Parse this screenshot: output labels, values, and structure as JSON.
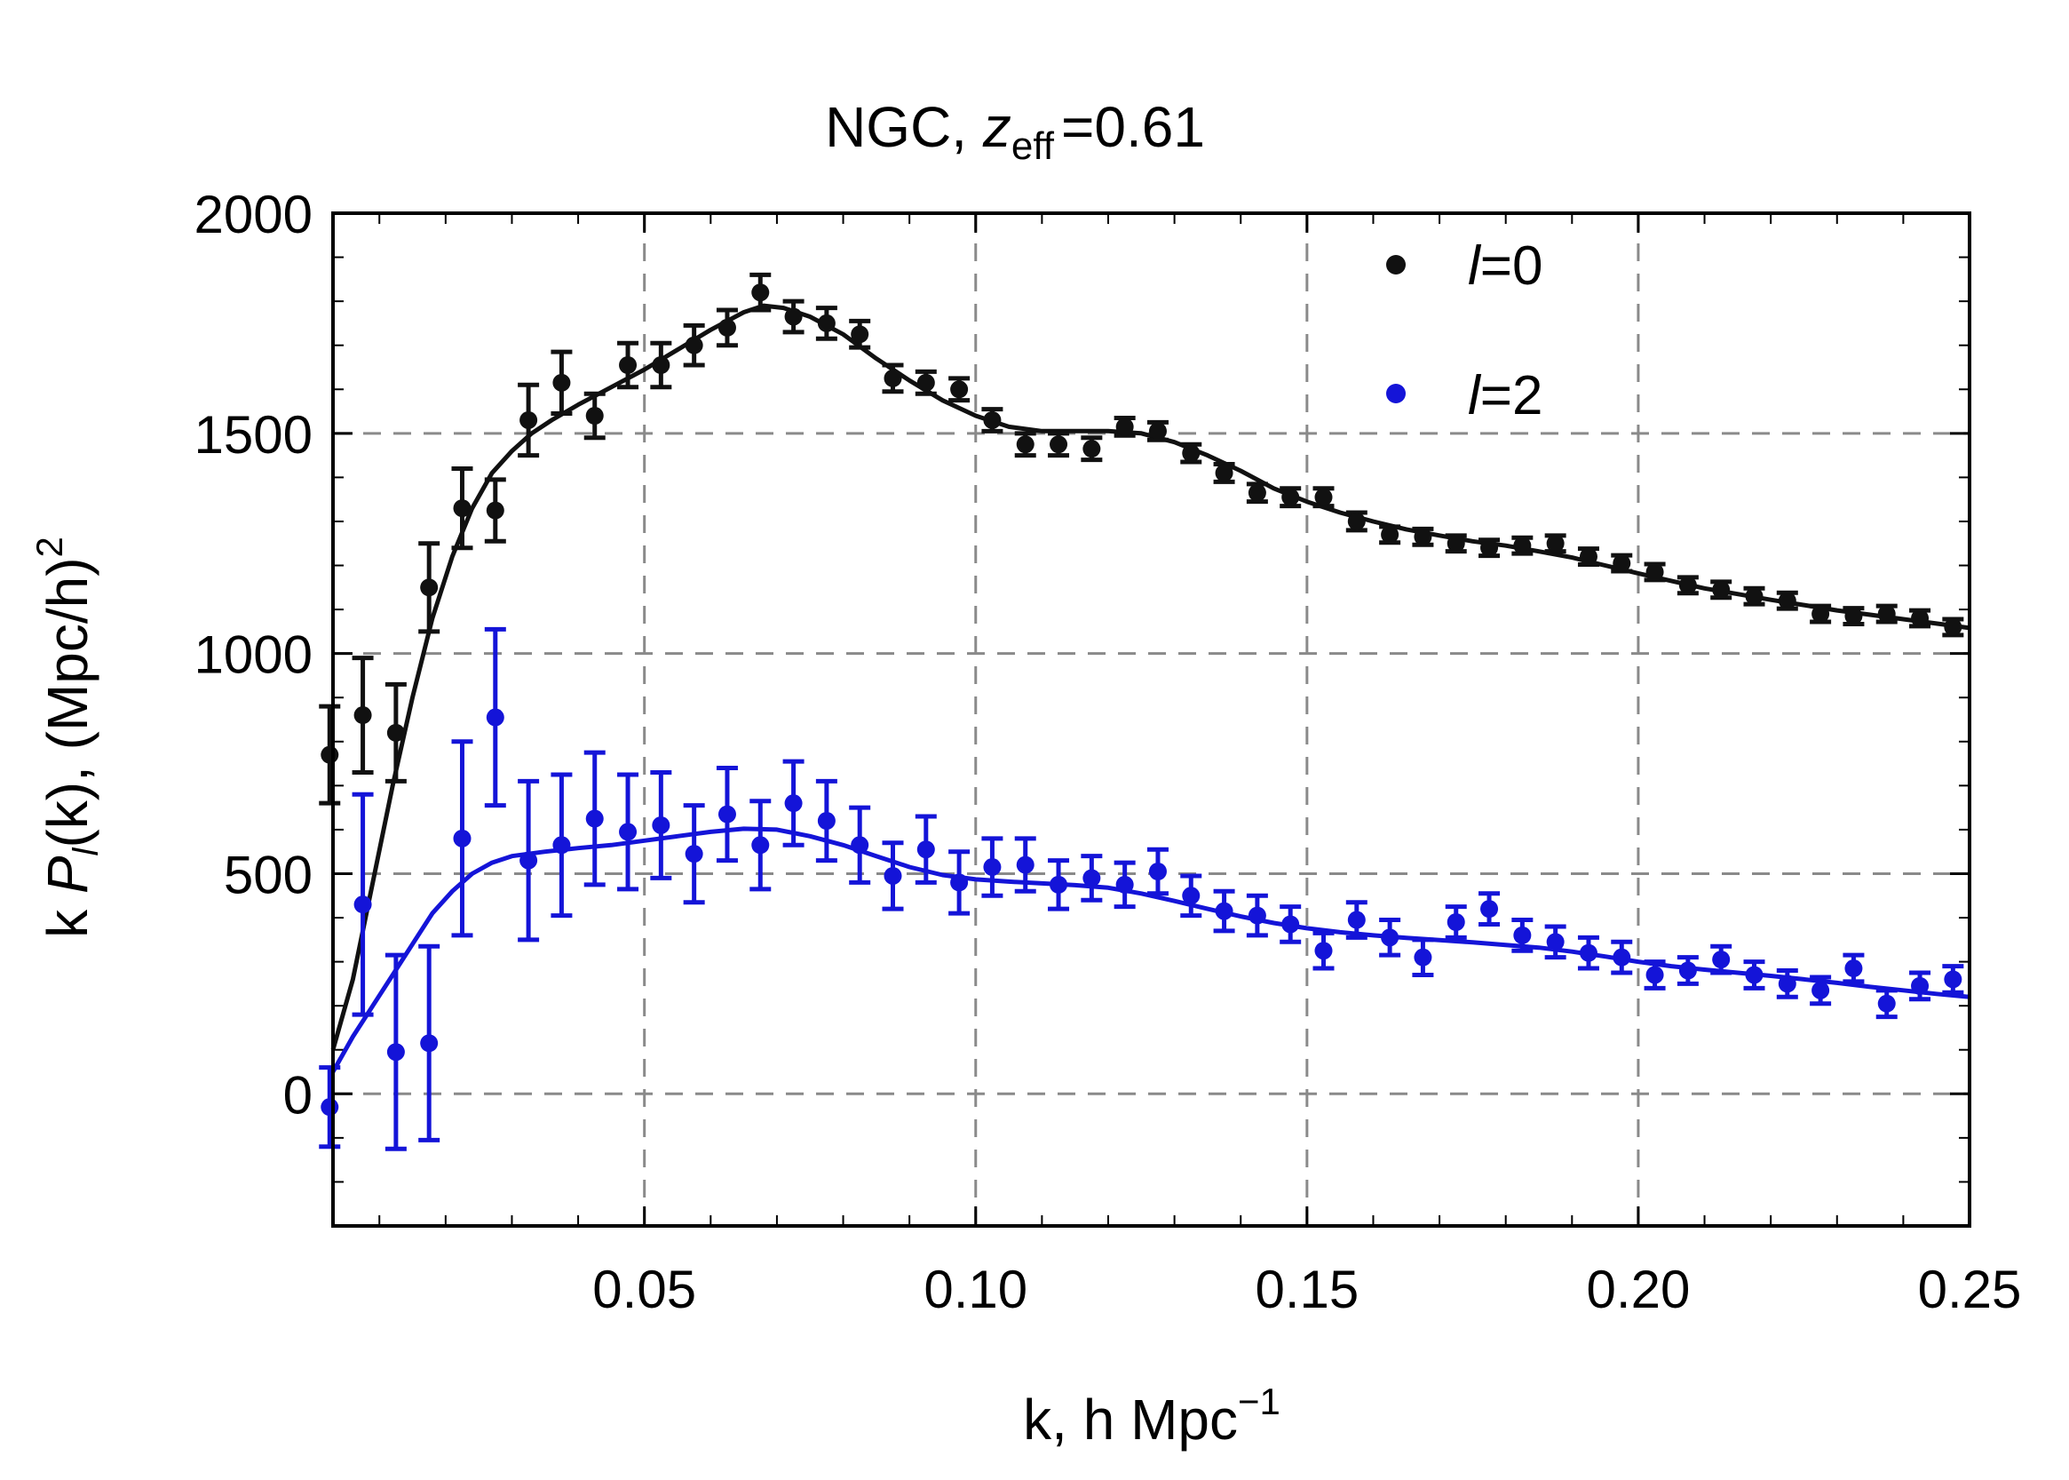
{
  "chart_data": {
    "type": "scatter",
    "title": "NGC, z_eff =0.61",
    "title_parts": {
      "prefix": "NGC, ",
      "symbol": "z",
      "subscript": "eff",
      "suffix": "=0.61"
    },
    "xlabel": "k, h Mpc^-1",
    "xlabel_parts": {
      "base": "k, h Mpc",
      "superscript": "−1"
    },
    "ylabel": "k P_l(k), (Mpc/h)^2",
    "ylabel_parts": {
      "k": "k ",
      "p": "P",
      "l": "l",
      "rest": "(k), (Mpc/h)",
      "sup": "2"
    },
    "xlim": [
      0.003,
      0.25
    ],
    "ylim": [
      -300,
      2000
    ],
    "xticks": [
      0.05,
      0.1,
      0.15,
      0.2,
      0.25
    ],
    "xtick_labels": [
      "0.05",
      "0.10",
      "0.15",
      "0.20",
      "0.25"
    ],
    "yticks": [
      0,
      500,
      1000,
      1500,
      2000
    ],
    "ytick_labels": [
      "0",
      "500",
      "1000",
      "1500",
      "2000"
    ],
    "grid": true,
    "legend_position": "top-right",
    "series": [
      {
        "name": "l=0",
        "legend_symbol": "l",
        "legend_value": "=0",
        "color": "#111111",
        "points": [
          [
            0.0025,
            770,
            110
          ],
          [
            0.0075,
            860,
            130
          ],
          [
            0.0125,
            820,
            110
          ],
          [
            0.0175,
            1150,
            100
          ],
          [
            0.0225,
            1330,
            90
          ],
          [
            0.0275,
            1325,
            70
          ],
          [
            0.0325,
            1530,
            80
          ],
          [
            0.0375,
            1615,
            70
          ],
          [
            0.0425,
            1540,
            50
          ],
          [
            0.0475,
            1655,
            50
          ],
          [
            0.0525,
            1655,
            50
          ],
          [
            0.0575,
            1700,
            45
          ],
          [
            0.0625,
            1740,
            40
          ],
          [
            0.0675,
            1820,
            40
          ],
          [
            0.0725,
            1765,
            35
          ],
          [
            0.0775,
            1750,
            35
          ],
          [
            0.0825,
            1725,
            30
          ],
          [
            0.0875,
            1625,
            30
          ],
          [
            0.0925,
            1615,
            25
          ],
          [
            0.0975,
            1600,
            25
          ],
          [
            0.1025,
            1530,
            25
          ],
          [
            0.1075,
            1475,
            25
          ],
          [
            0.1125,
            1475,
            25
          ],
          [
            0.1175,
            1465,
            25
          ],
          [
            0.1225,
            1515,
            20
          ],
          [
            0.1275,
            1505,
            20
          ],
          [
            0.1325,
            1455,
            20
          ],
          [
            0.1375,
            1410,
            20
          ],
          [
            0.1425,
            1365,
            20
          ],
          [
            0.1475,
            1355,
            20
          ],
          [
            0.1525,
            1355,
            20
          ],
          [
            0.1575,
            1300,
            20
          ],
          [
            0.1625,
            1270,
            18
          ],
          [
            0.1675,
            1265,
            18
          ],
          [
            0.1725,
            1250,
            18
          ],
          [
            0.1775,
            1240,
            18
          ],
          [
            0.1825,
            1245,
            18
          ],
          [
            0.1875,
            1250,
            18
          ],
          [
            0.1925,
            1220,
            18
          ],
          [
            0.1975,
            1205,
            18
          ],
          [
            0.2025,
            1185,
            18
          ],
          [
            0.2075,
            1155,
            18
          ],
          [
            0.2125,
            1145,
            18
          ],
          [
            0.2175,
            1130,
            18
          ],
          [
            0.2225,
            1120,
            18
          ],
          [
            0.2275,
            1090,
            18
          ],
          [
            0.2325,
            1085,
            18
          ],
          [
            0.2375,
            1090,
            18
          ],
          [
            0.2425,
            1080,
            18
          ],
          [
            0.2475,
            1060,
            18
          ]
        ],
        "model": [
          [
            0.003,
            100
          ],
          [
            0.006,
            260
          ],
          [
            0.009,
            480
          ],
          [
            0.012,
            700
          ],
          [
            0.015,
            900
          ],
          [
            0.018,
            1080
          ],
          [
            0.021,
            1220
          ],
          [
            0.024,
            1330
          ],
          [
            0.027,
            1410
          ],
          [
            0.03,
            1460
          ],
          [
            0.033,
            1500
          ],
          [
            0.036,
            1530
          ],
          [
            0.04,
            1565
          ],
          [
            0.045,
            1605
          ],
          [
            0.05,
            1645
          ],
          [
            0.055,
            1690
          ],
          [
            0.06,
            1735
          ],
          [
            0.065,
            1775
          ],
          [
            0.068,
            1790
          ],
          [
            0.071,
            1785
          ],
          [
            0.075,
            1765
          ],
          [
            0.08,
            1725
          ],
          [
            0.085,
            1670
          ],
          [
            0.09,
            1620
          ],
          [
            0.095,
            1575
          ],
          [
            0.1,
            1540
          ],
          [
            0.105,
            1515
          ],
          [
            0.11,
            1505
          ],
          [
            0.115,
            1505
          ],
          [
            0.12,
            1505
          ],
          [
            0.125,
            1500
          ],
          [
            0.13,
            1480
          ],
          [
            0.135,
            1450
          ],
          [
            0.14,
            1415
          ],
          [
            0.145,
            1375
          ],
          [
            0.15,
            1345
          ],
          [
            0.155,
            1320
          ],
          [
            0.16,
            1300
          ],
          [
            0.165,
            1282
          ],
          [
            0.17,
            1268
          ],
          [
            0.175,
            1255
          ],
          [
            0.18,
            1245
          ],
          [
            0.185,
            1232
          ],
          [
            0.19,
            1218
          ],
          [
            0.195,
            1200
          ],
          [
            0.2,
            1182
          ],
          [
            0.205,
            1165
          ],
          [
            0.21,
            1148
          ],
          [
            0.215,
            1135
          ],
          [
            0.22,
            1122
          ],
          [
            0.225,
            1110
          ],
          [
            0.23,
            1098
          ],
          [
            0.235,
            1088
          ],
          [
            0.24,
            1078
          ],
          [
            0.245,
            1068
          ],
          [
            0.25,
            1058
          ]
        ]
      },
      {
        "name": "l=2",
        "legend_symbol": "l",
        "legend_value": "=2",
        "color": "#1414d8",
        "points": [
          [
            0.0025,
            -30,
            90
          ],
          [
            0.0075,
            430,
            250
          ],
          [
            0.0125,
            95,
            220
          ],
          [
            0.0175,
            115,
            220
          ],
          [
            0.0225,
            580,
            220
          ],
          [
            0.0275,
            855,
            200
          ],
          [
            0.0325,
            530,
            180
          ],
          [
            0.0375,
            565,
            160
          ],
          [
            0.0425,
            625,
            150
          ],
          [
            0.0475,
            595,
            130
          ],
          [
            0.0525,
            610,
            120
          ],
          [
            0.0575,
            545,
            110
          ],
          [
            0.0625,
            635,
            105
          ],
          [
            0.0675,
            565,
            100
          ],
          [
            0.0725,
            660,
            95
          ],
          [
            0.0775,
            620,
            90
          ],
          [
            0.0825,
            565,
            85
          ],
          [
            0.0875,
            495,
            75
          ],
          [
            0.0925,
            555,
            75
          ],
          [
            0.0975,
            480,
            70
          ],
          [
            0.1025,
            515,
            65
          ],
          [
            0.1075,
            520,
            60
          ],
          [
            0.1125,
            475,
            55
          ],
          [
            0.1175,
            490,
            50
          ],
          [
            0.1225,
            475,
            50
          ],
          [
            0.1275,
            505,
            50
          ],
          [
            0.1325,
            450,
            45
          ],
          [
            0.1375,
            415,
            45
          ],
          [
            0.1425,
            405,
            45
          ],
          [
            0.1475,
            385,
            40
          ],
          [
            0.1525,
            325,
            40
          ],
          [
            0.1575,
            395,
            40
          ],
          [
            0.1625,
            355,
            40
          ],
          [
            0.1675,
            310,
            40
          ],
          [
            0.1725,
            390,
            35
          ],
          [
            0.1775,
            420,
            35
          ],
          [
            0.1825,
            360,
            35
          ],
          [
            0.1875,
            345,
            35
          ],
          [
            0.1925,
            320,
            35
          ],
          [
            0.1975,
            310,
            35
          ],
          [
            0.2025,
            270,
            30
          ],
          [
            0.2075,
            280,
            30
          ],
          [
            0.2125,
            305,
            30
          ],
          [
            0.2175,
            270,
            30
          ],
          [
            0.2225,
            250,
            30
          ],
          [
            0.2275,
            235,
            30
          ],
          [
            0.2325,
            285,
            30
          ],
          [
            0.2375,
            205,
            30
          ],
          [
            0.2425,
            245,
            30
          ],
          [
            0.2475,
            260,
            30
          ]
        ],
        "model": [
          [
            0.003,
            50
          ],
          [
            0.006,
            130
          ],
          [
            0.009,
            200
          ],
          [
            0.012,
            270
          ],
          [
            0.015,
            340
          ],
          [
            0.018,
            410
          ],
          [
            0.021,
            460
          ],
          [
            0.024,
            500
          ],
          [
            0.027,
            525
          ],
          [
            0.03,
            540
          ],
          [
            0.035,
            550
          ],
          [
            0.04,
            558
          ],
          [
            0.045,
            565
          ],
          [
            0.05,
            575
          ],
          [
            0.055,
            585
          ],
          [
            0.06,
            595
          ],
          [
            0.065,
            602
          ],
          [
            0.07,
            600
          ],
          [
            0.075,
            585
          ],
          [
            0.08,
            565
          ],
          [
            0.085,
            540
          ],
          [
            0.09,
            515
          ],
          [
            0.095,
            497
          ],
          [
            0.1,
            487
          ],
          [
            0.105,
            482
          ],
          [
            0.11,
            478
          ],
          [
            0.115,
            474
          ],
          [
            0.12,
            468
          ],
          [
            0.125,
            455
          ],
          [
            0.13,
            438
          ],
          [
            0.135,
            420
          ],
          [
            0.14,
            403
          ],
          [
            0.145,
            388
          ],
          [
            0.15,
            376
          ],
          [
            0.155,
            367
          ],
          [
            0.16,
            360
          ],
          [
            0.165,
            354
          ],
          [
            0.17,
            349
          ],
          [
            0.175,
            344
          ],
          [
            0.18,
            338
          ],
          [
            0.185,
            332
          ],
          [
            0.19,
            323
          ],
          [
            0.195,
            312
          ],
          [
            0.2,
            300
          ],
          [
            0.205,
            290
          ],
          [
            0.21,
            282
          ],
          [
            0.215,
            275
          ],
          [
            0.22,
            268
          ],
          [
            0.225,
            260
          ],
          [
            0.23,
            252
          ],
          [
            0.235,
            243
          ],
          [
            0.24,
            235
          ],
          [
            0.245,
            227
          ],
          [
            0.25,
            220
          ]
        ]
      }
    ]
  }
}
